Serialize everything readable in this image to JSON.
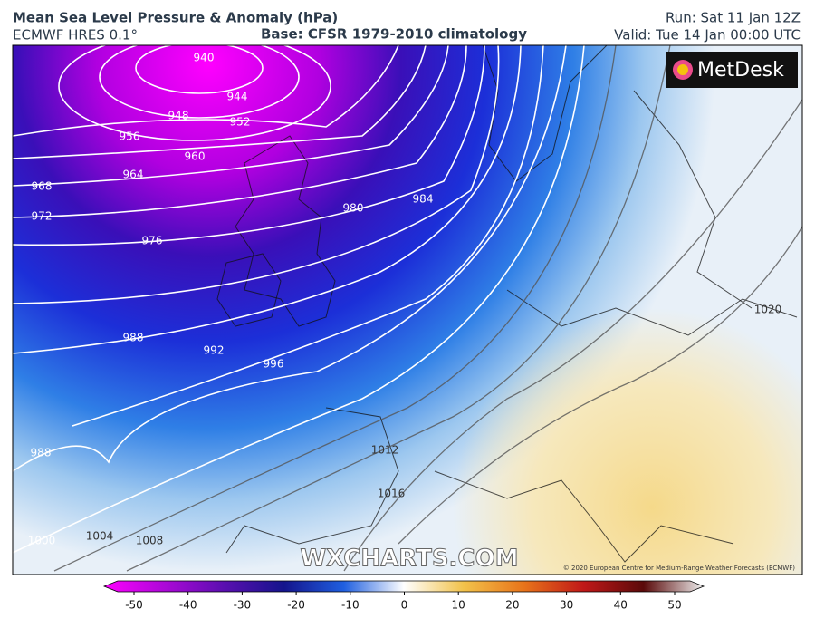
{
  "header": {
    "title": "Mean Sea Level Pressure & Anomaly (hPa)",
    "model": "ECMWF HRES 0.1°",
    "base": "Base: CFSR 1979-2010 climatology",
    "run": "Run: Sat 11 Jan 12Z",
    "valid": "Valid: Tue 14 Jan 00:00 UTC"
  },
  "map": {
    "logo": "MetDesk",
    "watermark": "WXCHARTS.COM",
    "copyright": "© 2020 European Centre for Medium-Range Weather Forecasts (ECMWF)",
    "isobar_labels": [
      "940",
      "944",
      "948",
      "952",
      "956",
      "960",
      "964",
      "968",
      "972",
      "976",
      "980",
      "984",
      "988",
      "992",
      "996",
      "988",
      "1000",
      "1004",
      "1008",
      "1012",
      "1016",
      "1020"
    ]
  },
  "colorbar": {
    "lim": [
      -50,
      50
    ],
    "ticks": [
      -50,
      -40,
      -30,
      -20,
      -10,
      0,
      10,
      20,
      30,
      40,
      50
    ]
  }
}
